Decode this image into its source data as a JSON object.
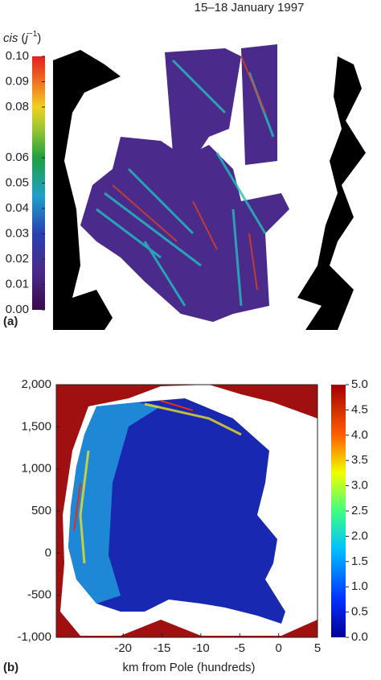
{
  "chart_data": [
    {
      "type": "map",
      "title": "15–18 January 1997",
      "panel_label": "(a)",
      "colorbar": {
        "label_parts": [
          "cis",
          "(",
          "j",
          "−1",
          ")"
        ],
        "lim": [
          0,
          0.1
        ],
        "ticks": [
          {
            "value": 0.1,
            "label": "0.10"
          },
          {
            "value": 0.09,
            "label": "0.09"
          },
          {
            "value": 0.08,
            "label": "0.08"
          },
          {
            "value": 0.06,
            "label": "0.06"
          },
          {
            "value": 0.05,
            "label": "0.05"
          },
          {
            "value": 0.04,
            "label": "0.04"
          },
          {
            "value": 0.03,
            "label": "0.03"
          },
          {
            "value": 0.02,
            "label": "0.02"
          },
          {
            "value": 0.01,
            "label": "0.01"
          },
          {
            "value": 0,
            "label": "0.00"
          }
        ]
      }
    },
    {
      "type": "map",
      "panel_label": "(b)",
      "xlabel": "km from Pole (hundreds)",
      "xlim": [
        -28.6,
        5
      ],
      "xticks": [
        -20,
        -15,
        -10,
        -5,
        0,
        5
      ],
      "ylim": [
        -1000,
        2000
      ],
      "yticks": [
        {
          "value": 2000,
          "label": "2,000"
        },
        {
          "value": 1500,
          "label": "1,500"
        },
        {
          "value": 1000,
          "label": "1,000"
        },
        500,
        0,
        -500,
        {
          "value": -1000,
          "label": "-1,000"
        }
      ],
      "colorbar": {
        "lim": [
          0,
          5
        ],
        "ticks": [
          {
            "value": 5,
            "label": "5.0"
          },
          4.5,
          {
            "value": 4,
            "label": "4.0"
          },
          3.5,
          {
            "value": 3,
            "label": "3.0"
          },
          2.5,
          {
            "value": 2,
            "label": "2.0"
          },
          1.5,
          {
            "value": 1,
            "label": "1.0"
          },
          0.5,
          {
            "value": 0,
            "label": "0.0"
          }
        ]
      }
    }
  ]
}
